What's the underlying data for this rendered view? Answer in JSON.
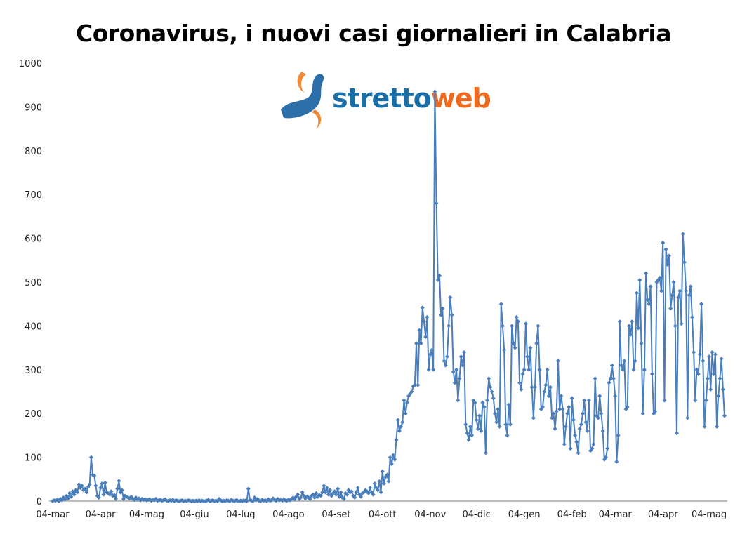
{
  "chart_data": {
    "type": "line",
    "title": "Coronavirus, i nuovi casi giornalieri in Calabria",
    "xlabel": "",
    "ylabel": "",
    "ylim": [
      0,
      1000
    ],
    "yticks": [
      "0",
      "100",
      "200",
      "300",
      "400",
      "500",
      "600",
      "700",
      "800",
      "900",
      "1000"
    ],
    "xticks": [
      "04-mar",
      "04-apr",
      "04-mag",
      "04-giu",
      "04-lug",
      "04-ago",
      "04-set",
      "04-ott",
      "04-nov",
      "04-dic",
      "04-gen",
      "04-feb",
      "04-mar",
      "04-apr",
      "04-mag"
    ],
    "start_date": "2020-03-04",
    "interval": "daily",
    "grid": false,
    "legend": "none",
    "series_color": "#4a7ebb",
    "values": [
      0,
      2,
      1,
      3,
      0,
      5,
      2,
      8,
      4,
      12,
      6,
      18,
      10,
      22,
      15,
      25,
      20,
      38,
      30,
      35,
      25,
      28,
      20,
      32,
      38,
      100,
      60,
      58,
      35,
      12,
      8,
      30,
      40,
      15,
      42,
      20,
      18,
      15,
      22,
      12,
      14,
      5,
      28,
      46,
      20,
      25,
      5,
      12,
      10,
      8,
      6,
      10,
      5,
      3,
      8,
      4,
      6,
      2,
      5,
      3,
      4,
      2,
      3,
      4,
      1,
      3,
      2,
      5,
      1,
      2,
      3,
      1,
      2,
      4,
      1,
      0,
      2,
      1,
      3,
      0,
      2,
      1,
      0,
      1,
      2,
      0,
      1,
      0,
      2,
      1,
      0,
      1,
      0,
      1,
      0,
      2,
      0,
      1,
      0,
      0,
      1,
      3,
      0,
      1,
      2,
      0,
      1,
      0,
      5,
      2,
      0,
      1,
      0,
      2,
      1,
      0,
      3,
      1,
      0,
      2,
      1,
      0,
      1,
      0,
      2,
      1,
      0,
      28,
      3,
      1,
      0,
      8,
      2,
      5,
      1,
      0,
      3,
      1,
      2,
      0,
      4,
      1,
      2,
      6,
      3,
      1,
      5,
      2,
      3,
      1,
      4,
      2,
      1,
      3,
      2,
      5,
      8,
      4,
      10,
      15,
      5,
      8,
      20,
      12,
      6,
      10,
      8,
      5,
      12,
      15,
      8,
      18,
      10,
      14,
      12,
      20,
      35,
      20,
      30,
      15,
      25,
      12,
      18,
      22,
      15,
      28,
      10,
      20,
      8,
      5,
      18,
      15,
      25,
      20,
      22,
      12,
      8,
      20,
      30,
      15,
      10,
      18,
      20,
      25,
      22,
      18,
      30,
      20,
      15,
      40,
      30,
      25,
      45,
      20,
      68,
      40,
      55,
      60,
      45,
      100,
      85,
      105,
      95,
      140,
      185,
      160,
      170,
      180,
      230,
      200,
      225,
      240,
      245,
      250,
      262,
      265,
      360,
      265,
      390,
      360,
      442,
      410,
      375,
      420,
      300,
      335,
      345,
      300,
      935,
      680,
      505,
      515,
      425,
      440,
      320,
      310,
      330,
      400,
      465,
      425,
      295,
      270,
      300,
      230,
      280,
      330,
      310,
      340,
      175,
      155,
      140,
      170,
      150,
      230,
      225,
      185,
      165,
      195,
      160,
      225,
      215,
      110,
      230,
      280,
      260,
      250,
      235,
      200,
      180,
      210,
      170,
      450,
      400,
      345,
      175,
      150,
      220,
      175,
      400,
      360,
      350,
      420,
      410,
      270,
      255,
      290,
      300,
      405,
      330,
      300,
      350,
      260,
      190,
      260,
      360,
      400,
      300,
      210,
      215,
      250,
      265,
      300,
      240,
      260,
      190,
      200,
      165,
      205,
      320,
      210,
      240,
      210,
      130,
      170,
      200,
      215,
      120,
      235,
      185,
      150,
      135,
      110,
      165,
      175,
      200,
      230,
      180,
      160,
      230,
      115,
      120,
      130,
      280,
      195,
      190,
      240,
      200,
      160,
      95,
      100,
      120,
      270,
      280,
      310,
      280,
      240,
      90,
      150,
      410,
      310,
      300,
      320,
      210,
      215,
      400,
      380,
      410,
      300,
      320,
      475,
      395,
      505,
      360,
      200,
      300,
      520,
      460,
      450,
      490,
      290,
      200,
      205,
      500,
      505,
      510,
      480,
      590,
      230,
      575,
      540,
      560,
      440,
      470,
      500,
      400,
      155,
      465,
      480,
      405,
      610,
      545,
      480,
      190,
      470,
      490,
      420,
      340,
      230,
      300,
      290,
      335,
      450,
      320,
      170,
      230,
      280,
      330,
      255,
      340,
      290,
      335,
      170,
      240,
      280,
      325,
      255,
      195
    ]
  },
  "logo": {
    "text_a": "stretto",
    "text_b": "web"
  }
}
